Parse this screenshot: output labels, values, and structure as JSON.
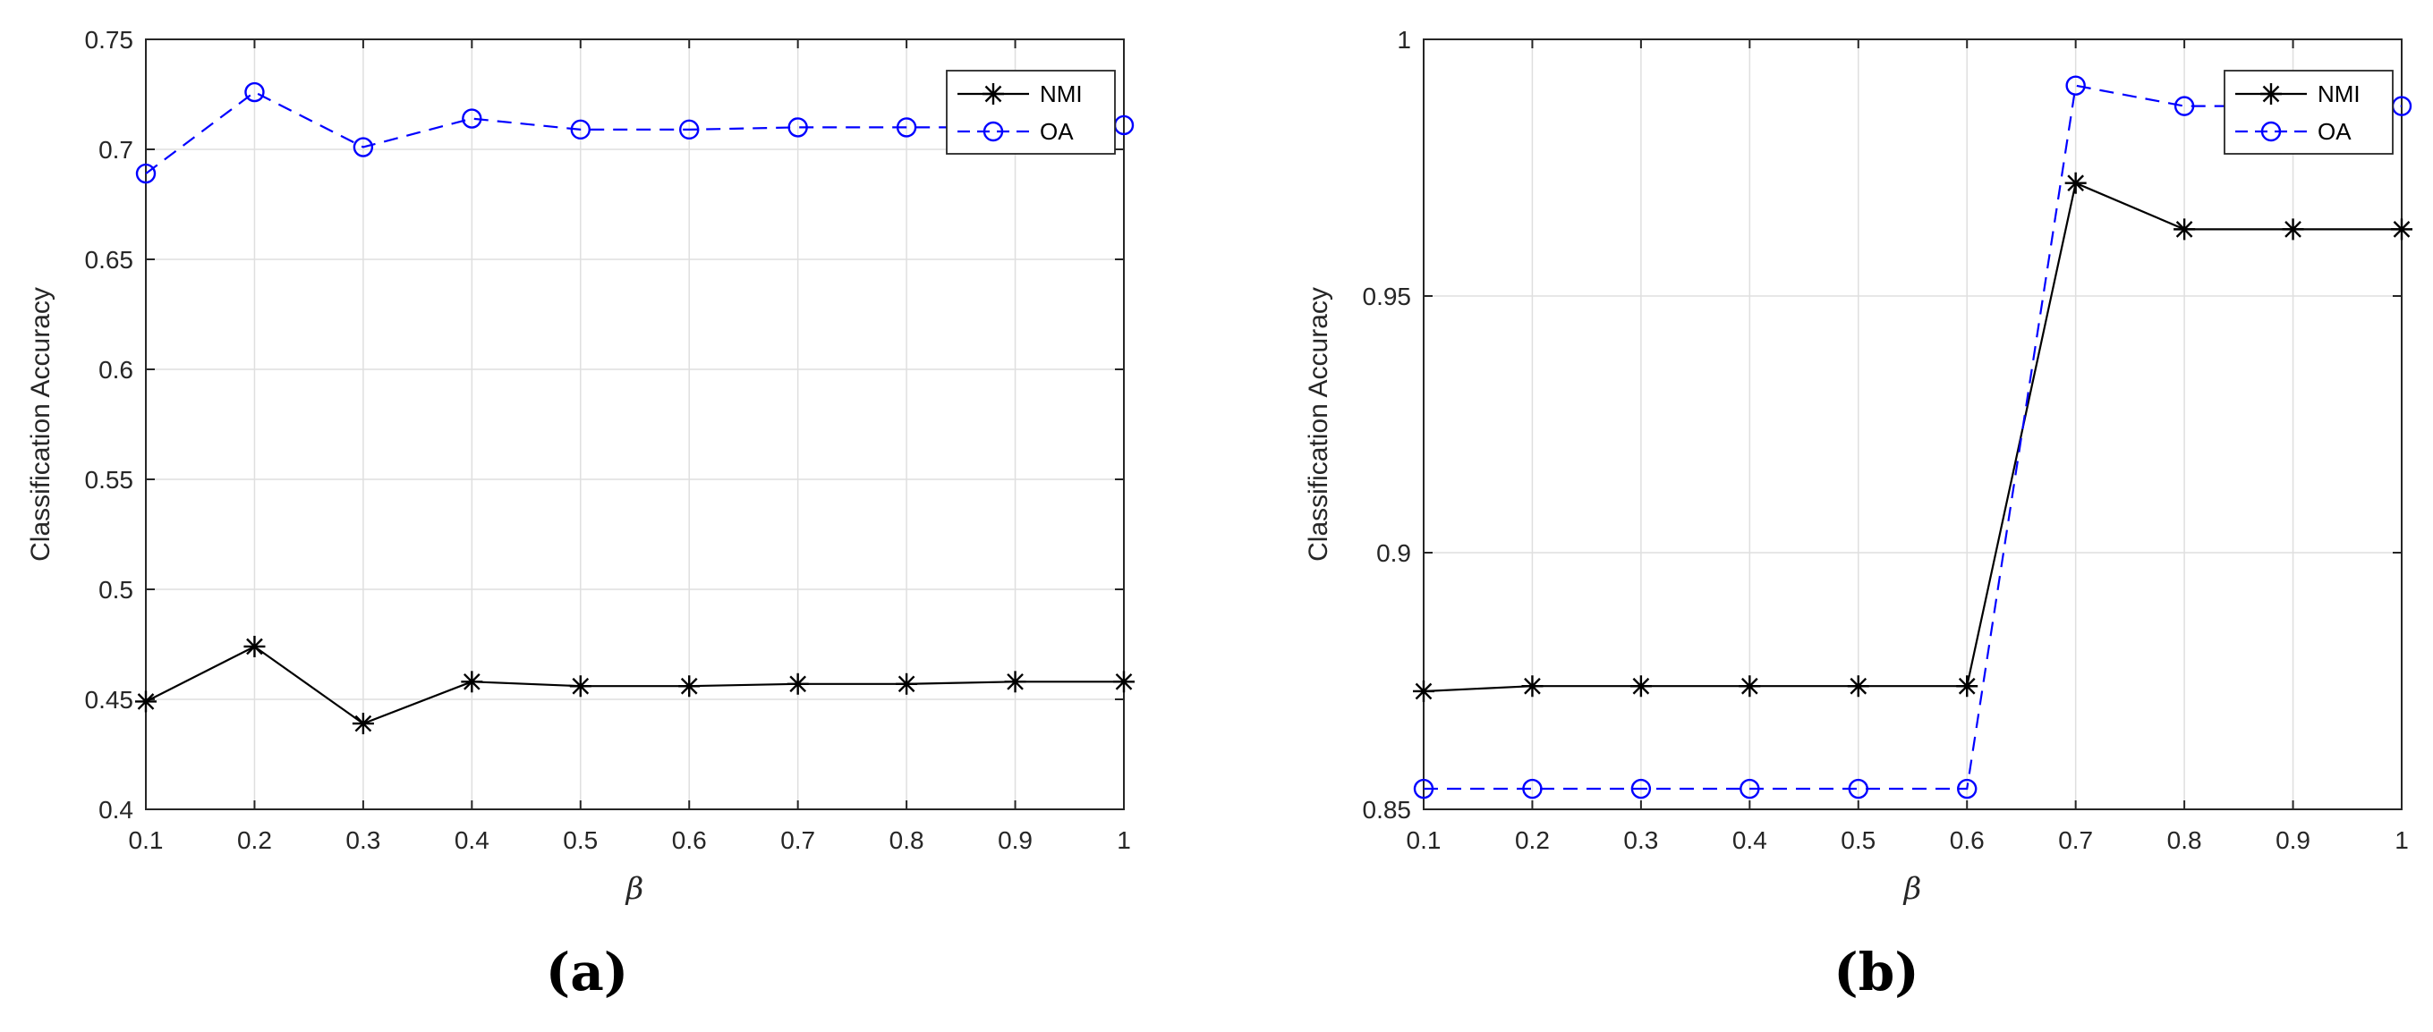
{
  "chart_data": [
    {
      "panel": "a",
      "caption": "(a)",
      "type": "line",
      "xlabel": "β",
      "ylabel": "Classification Accuracy",
      "x": [
        0.1,
        0.2,
        0.3,
        0.4,
        0.5,
        0.6,
        0.7,
        0.8,
        0.9,
        1
      ],
      "xlim": [
        0.1,
        1
      ],
      "ylim": [
        0.4,
        0.75
      ],
      "xticks": [
        "0.1",
        "0.2",
        "0.3",
        "0.4",
        "0.5",
        "0.6",
        "0.7",
        "0.8",
        "0.9",
        "1"
      ],
      "yticks": [
        "0.4",
        "0.45",
        "0.5",
        "0.55",
        "0.6",
        "0.65",
        "0.7",
        "0.75"
      ],
      "grid": true,
      "legend_position": "top-right",
      "series": [
        {
          "name": "NMI",
          "style": "solid",
          "marker": "asterisk",
          "color": "#000000",
          "values": [
            0.449,
            0.474,
            0.439,
            0.458,
            0.456,
            0.456,
            0.457,
            0.457,
            0.458,
            0.458
          ]
        },
        {
          "name": "OA",
          "style": "dashed",
          "marker": "circle",
          "color": "#0000ff",
          "values": [
            0.689,
            0.726,
            0.701,
            0.714,
            0.709,
            0.709,
            0.71,
            0.71,
            0.71,
            0.711
          ]
        }
      ]
    },
    {
      "panel": "b",
      "caption": "(b)",
      "type": "line",
      "xlabel": "β",
      "ylabel": "Classification Accuracy",
      "x": [
        0.1,
        0.2,
        0.3,
        0.4,
        0.5,
        0.6,
        0.7,
        0.8,
        0.9,
        1
      ],
      "xlim": [
        0.1,
        1
      ],
      "ylim": [
        0.85,
        1
      ],
      "xticks": [
        "0.1",
        "0.2",
        "0.3",
        "0.4",
        "0.5",
        "0.6",
        "0.7",
        "0.8",
        "0.9",
        "1"
      ],
      "yticks": [
        "0.85",
        "0.9",
        "0.95",
        "1"
      ],
      "grid": true,
      "legend_position": "top-right",
      "series": [
        {
          "name": "NMI",
          "style": "solid",
          "marker": "asterisk",
          "color": "#000000",
          "values": [
            0.873,
            0.874,
            0.874,
            0.874,
            0.874,
            0.874,
            0.972,
            0.963,
            0.963,
            0.963
          ]
        },
        {
          "name": "OA",
          "style": "dashed",
          "marker": "circle",
          "color": "#0000ff",
          "values": [
            0.854,
            0.854,
            0.854,
            0.854,
            0.854,
            0.854,
            0.991,
            0.987,
            0.987,
            0.987
          ]
        }
      ]
    }
  ]
}
